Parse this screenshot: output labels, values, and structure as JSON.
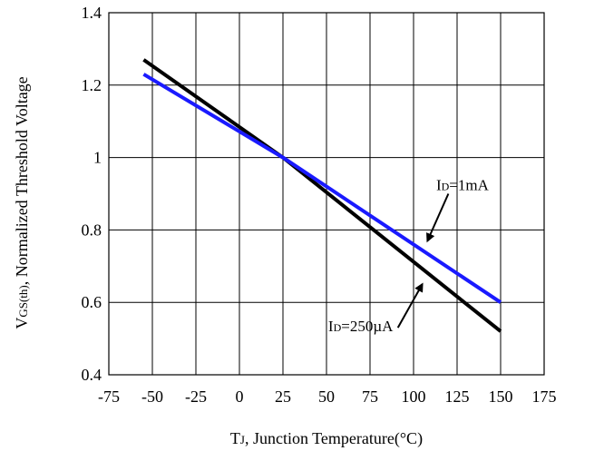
{
  "chart_data": {
    "type": "line",
    "title": "",
    "xlabel": {
      "main": "T",
      "sub": "J",
      "rest": ", Junction Temperature(",
      "unit": "°C",
      "close": ")"
    },
    "ylabel": {
      "main": "V",
      "sub": "GS(th)",
      "rest": ", Normalized Threshold Voltage"
    },
    "xlim": [
      -75,
      175
    ],
    "ylim": [
      0.4,
      1.4
    ],
    "xticks": [
      "-75",
      "-50",
      "-25",
      "0",
      "25",
      "50",
      "75",
      "100",
      "125",
      "150",
      "175"
    ],
    "yticks": [
      "0.4",
      "0.6",
      "0.8",
      "1",
      "1.2",
      "1.4"
    ],
    "grid": true,
    "series": [
      {
        "name": "ID=250µA",
        "color": "#000000",
        "x": [
          -55,
          25,
          150
        ],
        "y": [
          1.27,
          1.0,
          0.52
        ]
      },
      {
        "name": "ID=1mA",
        "color": "#1a1aff",
        "x": [
          -55,
          25,
          150
        ],
        "y": [
          1.23,
          1.0,
          0.6
        ]
      }
    ],
    "annotations": [
      {
        "main": "I",
        "sub": "D",
        "rest": "=1mA",
        "series": "ID=1mA"
      },
      {
        "main": "I",
        "sub": "D",
        "rest": "=250µA",
        "series": "ID=250µA"
      }
    ]
  }
}
